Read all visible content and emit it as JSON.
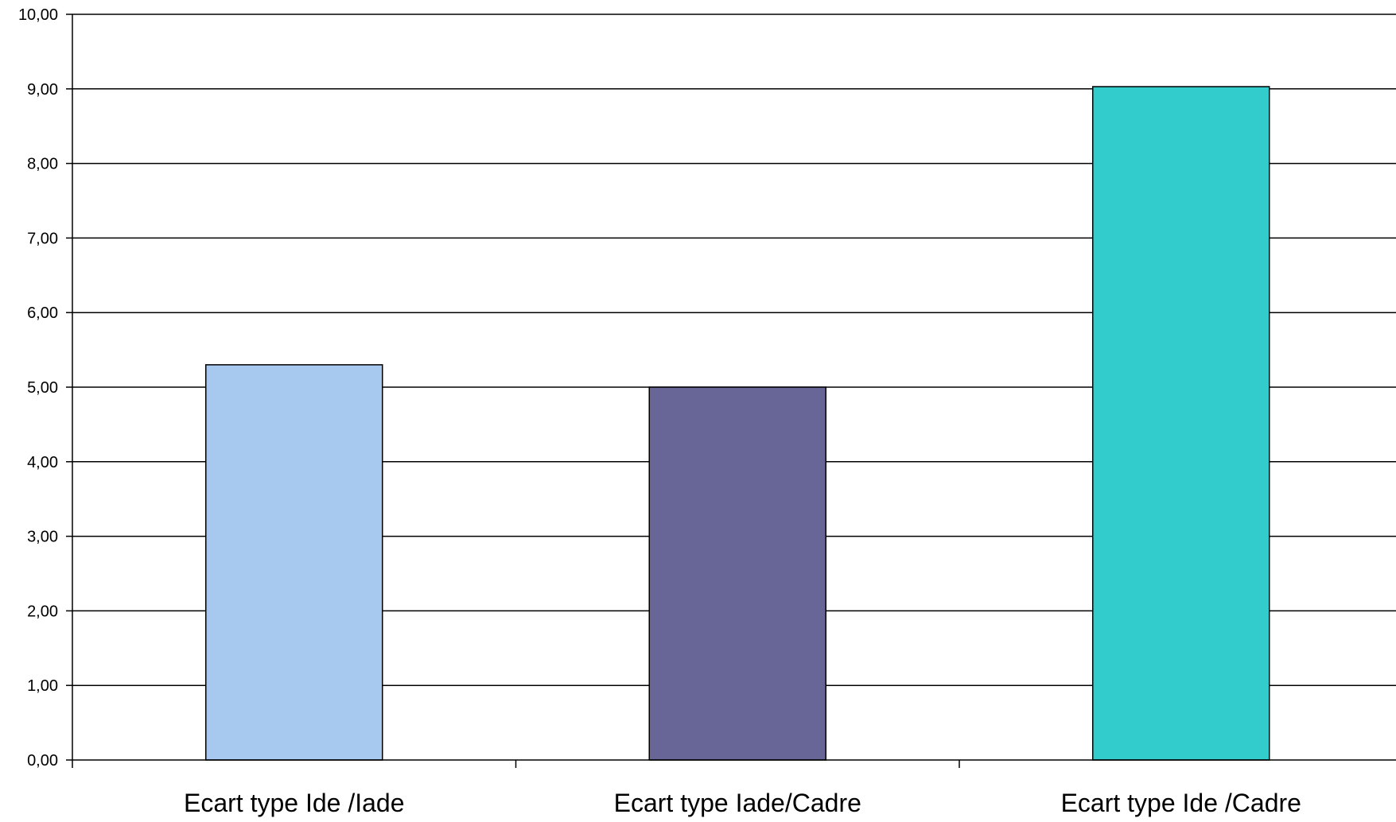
{
  "chart_data": {
    "type": "bar",
    "title": "",
    "xlabel": "",
    "ylabel": "",
    "categories": [
      "Ecart type Ide /Iade",
      "Ecart type Iade/Cadre",
      "Ecart type Ide /Cadre"
    ],
    "values": [
      5.3,
      5.0,
      9.03
    ],
    "colors": [
      "#a8c9ef",
      "#676696",
      "#33cccc"
    ],
    "ylim": [
      0,
      10
    ],
    "yticks": [
      0,
      1,
      2,
      3,
      4,
      5,
      6,
      7,
      8,
      9,
      10
    ],
    "ytick_labels": [
      "0,00",
      "1,00",
      "2,00",
      "3,00",
      "4,00",
      "5,00",
      "6,00",
      "7,00",
      "8,00",
      "9,00",
      "10,00"
    ],
    "grid": true,
    "legend": "none"
  }
}
